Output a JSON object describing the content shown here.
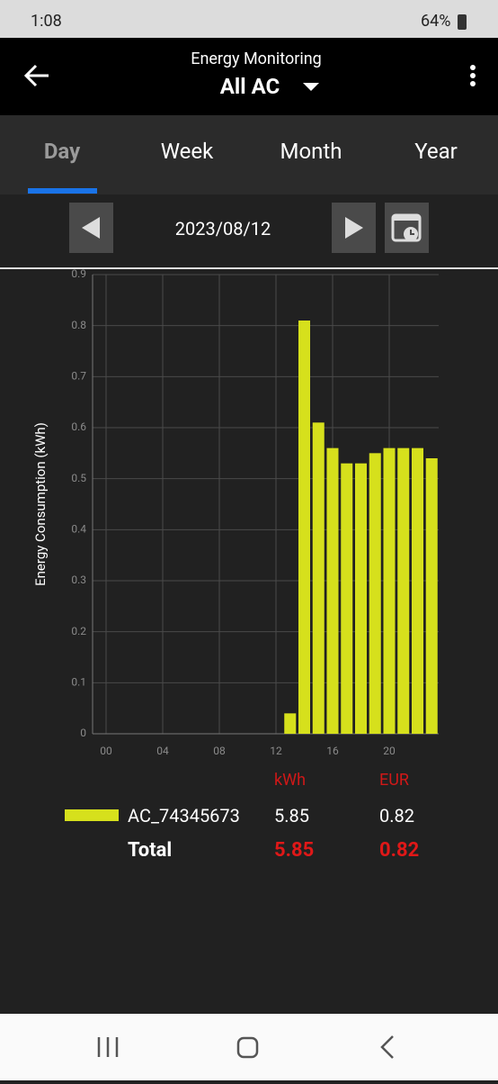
{
  "status_bar": {
    "time": "1:08",
    "battery": "64%"
  },
  "header": {
    "subtitle": "Energy Monitoring",
    "title": "All AC"
  },
  "tabs": [
    "Day",
    "Week",
    "Month",
    "Year"
  ],
  "date": "2023/08/12",
  "chart_data": {
    "type": "bar",
    "y_label": "Energy Consumption (kWh)",
    "categories": [
      "00",
      null,
      null,
      null,
      "04",
      null,
      null,
      null,
      "08",
      null,
      null,
      null,
      "12",
      null,
      null,
      null,
      "16",
      null,
      null,
      null,
      "20",
      null,
      null,
      null
    ],
    "values": [
      0,
      0,
      0,
      0,
      0,
      0,
      0,
      0,
      0,
      0,
      0,
      0,
      0,
      0.04,
      0.81,
      0.61,
      0.56,
      0.53,
      0.53,
      0.55,
      0.56,
      0.56,
      0.56,
      0.54
    ],
    "color": "#d6e01c",
    "ylim": [
      0,
      0.9
    ],
    "yticks": [
      0,
      0.1,
      0.2,
      0.3,
      0.4,
      0.5,
      0.6,
      0.7,
      0.8,
      0.9
    ],
    "grid": true
  },
  "summary": {
    "headers": [
      "kWh",
      "EUR"
    ],
    "rows": [
      {
        "name": "AC_74345673",
        "kwh": 5.85,
        "eur": 0.82
      }
    ],
    "total": {
      "name": "Total",
      "kwh": 5.85,
      "eur": 0.82
    }
  }
}
